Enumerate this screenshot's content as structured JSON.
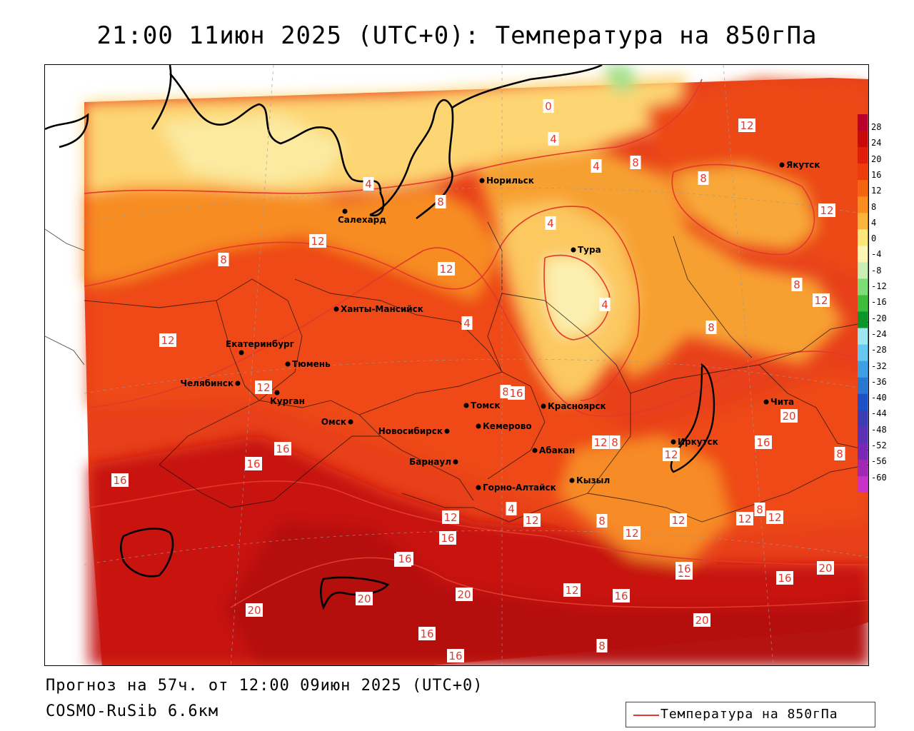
{
  "title": "21:00 11июн 2025 (UTC+0): Температура на 850гПа",
  "footer": {
    "forecast": "Прогноз на 57ч. от 12:00 09июн 2025 (UTC+0)",
    "model": "COSMO-RuSib 6.6км"
  },
  "legend": {
    "line_label": "Температура на 850гПа",
    "line_color": "#e23a2a"
  },
  "colorbar": {
    "ticks": [
      "28",
      "24",
      "20",
      "16",
      "12",
      "8",
      "4",
      "0",
      "-4",
      "-8",
      "-12",
      "-16",
      "-20",
      "-24",
      "-28",
      "-32",
      "-36",
      "-40",
      "-44",
      "-48",
      "-52",
      "-56",
      "-60"
    ],
    "colors": [
      "#b8002a",
      "#c80a0a",
      "#e01e0a",
      "#ee3c0a",
      "#f5640f",
      "#fb8c1e",
      "#fdb43c",
      "#fde67a",
      "#fbf6b4",
      "#c8f0b4",
      "#7ddc78",
      "#3cbe3c",
      "#0a9628",
      "#a0e6f0",
      "#64c8f0",
      "#3ca0e6",
      "#2878d2",
      "#1e50c8",
      "#3c3cb4",
      "#5a32b4",
      "#7828b4",
      "#a028b4",
      "#c832c8"
    ]
  },
  "cities": [
    {
      "name": "Норильск"
    },
    {
      "name": "Якутск"
    },
    {
      "name": "Салехард"
    },
    {
      "name": "Тура"
    },
    {
      "name": "Ханты-Мансийск"
    },
    {
      "name": "Екатеринбург"
    },
    {
      "name": "Тюмень"
    },
    {
      "name": "Челябинск"
    },
    {
      "name": "Курган"
    },
    {
      "name": "Омск"
    },
    {
      "name": "Новосибирск"
    },
    {
      "name": "Томск"
    },
    {
      "name": "Кемерово"
    },
    {
      "name": "Красноярск"
    },
    {
      "name": "Барнаул"
    },
    {
      "name": "Абакан"
    },
    {
      "name": "Иркутск"
    },
    {
      "name": "Чита"
    },
    {
      "name": "Горно-Алтайск"
    },
    {
      "name": "Кызыл"
    }
  ],
  "isotherm_labels": [
    "0",
    "4",
    "4",
    "4",
    "8",
    "8",
    "8",
    "12",
    "12",
    "12",
    "4",
    "4",
    "12",
    "8",
    "12",
    "4",
    "8",
    "12",
    "8",
    "8",
    "12",
    "16",
    "16",
    "16",
    "16",
    "8",
    "12",
    "12",
    "12",
    "12",
    "8",
    "12",
    "16",
    "16",
    "20",
    "20",
    "12",
    "16",
    "20",
    "20",
    "16",
    "20",
    "16",
    "16",
    "8",
    "12",
    "12",
    "8",
    "16",
    "20",
    "16",
    "4",
    "12",
    "16",
    "8",
    "12"
  ]
}
